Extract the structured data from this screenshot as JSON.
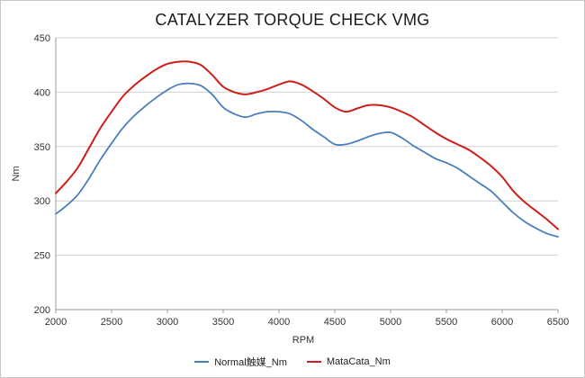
{
  "chart_data": {
    "type": "line",
    "title": "CATALYZER TORQUE CHECK VMG",
    "xlabel": "RPM",
    "ylabel": "Nm",
    "xlim": [
      2000,
      6500
    ],
    "ylim": [
      200,
      450
    ],
    "x_ticks": [
      2000,
      2500,
      3000,
      3500,
      4000,
      4500,
      5000,
      5500,
      6000,
      6500
    ],
    "y_ticks": [
      200,
      250,
      300,
      350,
      400,
      450
    ],
    "grid": true,
    "legend_position": "bottom",
    "series": [
      {
        "name": "Normal触媒_Nm",
        "color": "#4a7ebb",
        "x": [
          2000,
          2100,
          2200,
          2300,
          2400,
          2500,
          2600,
          2700,
          2800,
          2900,
          3000,
          3100,
          3200,
          3300,
          3400,
          3500,
          3600,
          3700,
          3800,
          3900,
          4000,
          4100,
          4200,
          4300,
          4400,
          4500,
          4600,
          4700,
          4800,
          4900,
          5000,
          5100,
          5200,
          5300,
          5400,
          5500,
          5600,
          5700,
          5800,
          5900,
          6000,
          6100,
          6200,
          6300,
          6400,
          6500
        ],
        "values": [
          288,
          296,
          306,
          321,
          338,
          353,
          367,
          378,
          387,
          395,
          402,
          407,
          408,
          406,
          398,
          386,
          380,
          377,
          380,
          382,
          382,
          380,
          374,
          366,
          359,
          352,
          352,
          355,
          359,
          362,
          363,
          358,
          351,
          345,
          339,
          335,
          330,
          323,
          316,
          309,
          299,
          289,
          281,
          275,
          270,
          267
        ]
      },
      {
        "name": "MataCata_Nm",
        "color": "#cc1f1a",
        "x": [
          2000,
          2100,
          2200,
          2300,
          2400,
          2500,
          2600,
          2700,
          2800,
          2900,
          3000,
          3100,
          3200,
          3300,
          3400,
          3500,
          3600,
          3700,
          3800,
          3900,
          4000,
          4100,
          4200,
          4300,
          4400,
          4500,
          4600,
          4700,
          4800,
          4900,
          5000,
          5100,
          5200,
          5300,
          5400,
          5500,
          5600,
          5700,
          5800,
          5900,
          6000,
          6100,
          6200,
          6300,
          6400,
          6500
        ],
        "values": [
          307,
          318,
          331,
          349,
          367,
          382,
          396,
          406,
          414,
          421,
          426,
          428,
          428,
          425,
          416,
          405,
          400,
          398,
          400,
          403,
          407,
          410,
          407,
          401,
          394,
          386,
          382,
          385,
          388,
          388,
          386,
          382,
          377,
          370,
          363,
          357,
          352,
          347,
          340,
          332,
          322,
          309,
          299,
          291,
          283,
          274
        ]
      }
    ]
  }
}
